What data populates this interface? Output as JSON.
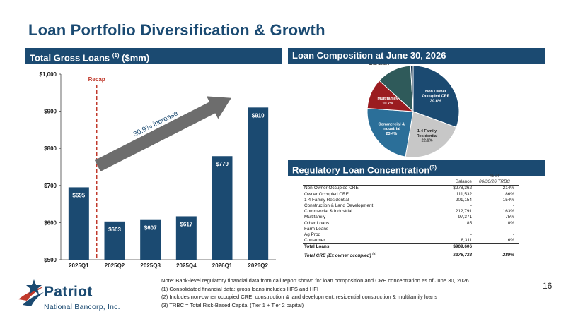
{
  "title": "Loan Portfolio Diversification & Growth",
  "left_header": {
    "text": "Total Gross Loans ",
    "sup": "(1)",
    "suffix": " ($mm)"
  },
  "right_header": "Loan Composition at June 30, 2026",
  "reg_header": {
    "text": "Regulatory Loan Concentration",
    "sup": "(3)"
  },
  "colors": {
    "navy": "#1b4a71",
    "bar": "#1b4a71",
    "recap_line": "#c0392b",
    "arrow": "#6d6d6d"
  },
  "chart_data": [
    {
      "type": "bar",
      "categories": [
        "2025Q1",
        "2025Q2",
        "2025Q3",
        "2025Q4",
        "2026Q1",
        "2026Q2"
      ],
      "values": [
        695,
        603,
        607,
        617,
        779,
        910
      ],
      "data_labels": [
        "$695",
        "$603",
        "$607",
        "$617",
        "$779",
        "$910"
      ],
      "ylim": [
        500,
        1000
      ],
      "yticks": [
        "$500",
        "$600",
        "$700",
        "$800",
        "$900",
        "$1,000"
      ],
      "ytick_values": [
        500,
        600,
        700,
        800,
        900,
        1000
      ],
      "annotations": {
        "recap_label": "Recap",
        "arrow_label": "30.9% increase"
      },
      "grid": false
    },
    {
      "type": "pie",
      "slices": [
        {
          "name_lines": [
            "Non Owner",
            "Occupied CRE",
            "30.6%"
          ],
          "value": 30.6,
          "color": "#1b4a71",
          "text_color": "#ffffff"
        },
        {
          "name_lines": [
            "1-4 Family",
            "Residential",
            "22.1%"
          ],
          "value": 22.1,
          "color": "#c7c7c7",
          "text_color": "#222222"
        },
        {
          "name_lines": [
            "Commercial &",
            "Industrial",
            "23.4%"
          ],
          "value": 23.4,
          "color": "#2b6f99",
          "text_color": "#ffffff"
        },
        {
          "name_lines": [
            "Multifamily",
            "10.7%"
          ],
          "value": 10.7,
          "color": "#9b1c20",
          "text_color": "#ffffff"
        },
        {
          "name_lines": [
            "Owner Occupied",
            "CRE 12.3%"
          ],
          "value": 12.3,
          "color": "#2f5a5a",
          "text_color": "#222222"
        },
        {
          "name_lines": [
            "Consumer",
            "0.9%"
          ],
          "value": 0.9,
          "color": "#0d2e4a",
          "text_color": "#222222"
        }
      ]
    }
  ],
  "reg_table": {
    "col_headers": {
      "balance": "Balance",
      "pct_line1": "% of",
      "pct_line2": "06/30/26 TRBC"
    },
    "rows": [
      {
        "label": "Non-Owner Occupied CRE",
        "balance": "$278,362",
        "pct": "214%"
      },
      {
        "label": "Owner Occupied CRE",
        "balance": "111,532",
        "pct": "86%"
      },
      {
        "label": "1-4 Family Residential",
        "balance": "201,154",
        "pct": "154%"
      },
      {
        "label": "Construction & Land Development",
        "balance": "-",
        "pct": "-"
      },
      {
        "label": "Commercial & Industrial",
        "balance": "212,791",
        "pct": "163%"
      },
      {
        "label": "Multifamily",
        "balance": "97,371",
        "pct": "75%"
      },
      {
        "label": "Other Loans",
        "balance": "85",
        "pct": "0%"
      },
      {
        "label": "Farm Loans",
        "balance": "-",
        "pct": "-"
      },
      {
        "label": "Ag Prod",
        "balance": "-",
        "pct": "-"
      },
      {
        "label": "Consumer",
        "balance": "8,311",
        "pct": "6%"
      }
    ],
    "total": {
      "label": "Total Loans",
      "balance": "$909,606",
      "pct": ""
    },
    "cre": {
      "label": "Total CRE (Ex owner occupied) ",
      "sup": "(2)",
      "balance": "$375,733",
      "pct": "289%"
    }
  },
  "notes": [
    "Note: Bank-level regulatory financial data from call report shown for loan composition and CRE concentration as of June 30, 2026",
    "(1) Consolidated financial data; gross loans includes HFS and HFI",
    "(2) Includes non-owner occupied CRE, construction & land development, residential construction & multifamily loans",
    "(3) TRBC = Total Risk-Based Capital (Tier 1 + Tier 2 capital)"
  ],
  "logo": {
    "name": "Patriot",
    "subtitle": "National Bancorp, Inc.",
    "icon": "star-swoosh-icon"
  },
  "page_number": "16"
}
